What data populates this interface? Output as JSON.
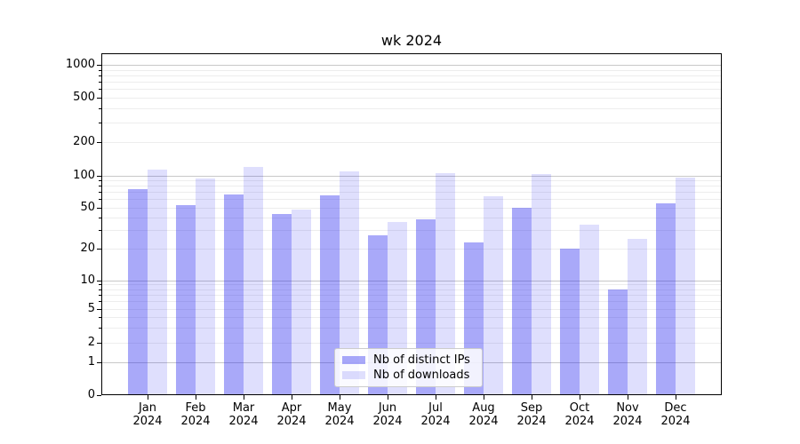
{
  "chart_data": {
    "type": "bar",
    "title": "wk 2024",
    "categories": [
      "Jan",
      "Feb",
      "Mar",
      "Apr",
      "May",
      "Jun",
      "Jul",
      "Aug",
      "Sep",
      "Oct",
      "Nov",
      "Dec"
    ],
    "category_year_line": "2024",
    "series": [
      {
        "name": "Nb of distinct IPs",
        "color": "rgba(30,30,240,0.38)",
        "values": [
          75,
          52,
          67,
          43,
          65,
          27,
          38,
          23,
          50,
          20,
          8,
          55
        ]
      },
      {
        "name": "Nb of downloads",
        "color": "rgba(30,30,240,0.14)",
        "values": [
          114,
          94,
          120,
          48,
          110,
          36,
          105,
          64,
          104,
          34,
          25,
          96
        ]
      }
    ],
    "y_axis": {
      "scale": "symlog",
      "ticks": [
        0,
        1,
        2,
        5,
        10,
        20,
        50,
        100,
        200,
        500,
        1000
      ],
      "major_grid_values": [
        1,
        10,
        100,
        1000
      ],
      "minor_grid_decades": [
        1,
        10,
        100
      ],
      "ylim": [
        0,
        1300
      ]
    },
    "legend": {
      "position": "lower center",
      "entries": [
        "Nb of distinct IPs",
        "Nb of downloads"
      ]
    },
    "grid": true
  },
  "colors": {
    "background": "#ffffff",
    "spine": "#000000",
    "text": "#000000",
    "major_grid": "#c8c8c8",
    "minor_grid": "#ededed",
    "bar_distinct_ips": "rgba(30,30,240,0.38)",
    "bar_downloads": "rgba(30,30,240,0.14)"
  }
}
